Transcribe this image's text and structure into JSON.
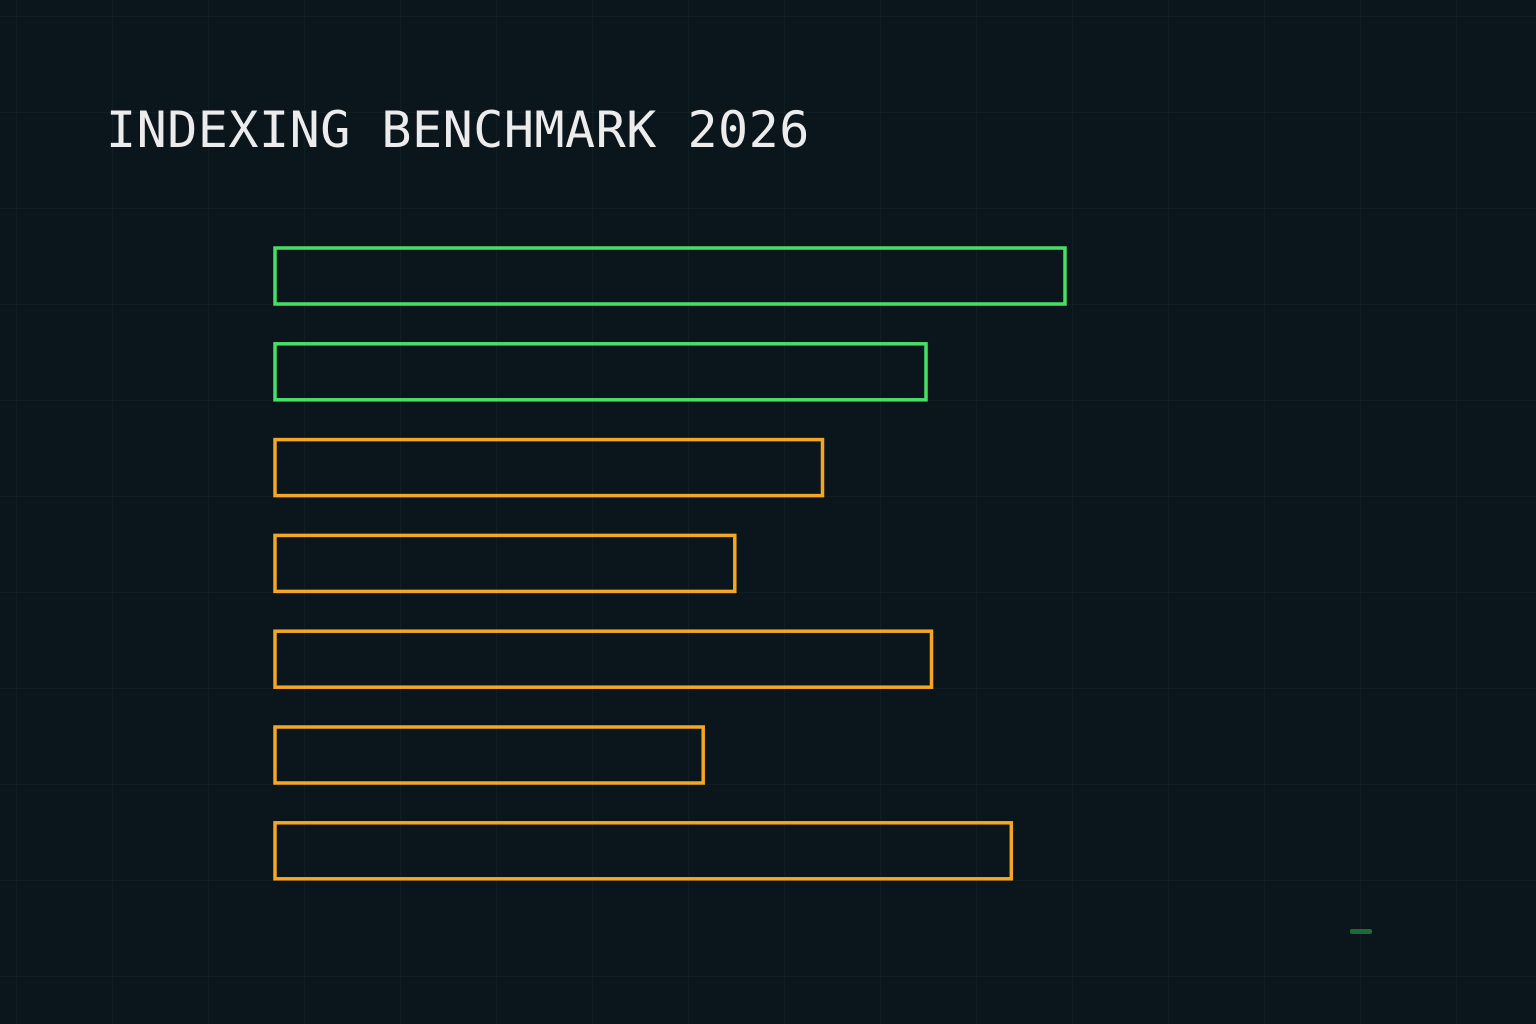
{
  "title": "INDEXING BENCHMARK 2026",
  "colors": {
    "background": "#0b151c",
    "highlight": "#47e067",
    "default": "#f5a623",
    "title": "#ececec",
    "corner_mark": "#1a6a3a"
  },
  "chart_data": {
    "type": "bar",
    "orientation": "horizontal",
    "title": "INDEXING BENCHMARK 2026",
    "xlabel": "",
    "ylabel": "",
    "categories": [
      "",
      "",
      "",
      "",
      "",
      "",
      ""
    ],
    "values": [
      100,
      82.4,
      69.3,
      58.2,
      83.1,
      54.2,
      93.2
    ],
    "value_scale": "relative to the longest bar (= 100)",
    "bar_colors": [
      "#47e067",
      "#47e067",
      "#f5a623",
      "#f5a623",
      "#f5a623",
      "#f5a623",
      "#f5a623"
    ],
    "bar_style": "outline",
    "xlim": [
      0,
      100
    ],
    "grid": true,
    "legend": "none"
  }
}
